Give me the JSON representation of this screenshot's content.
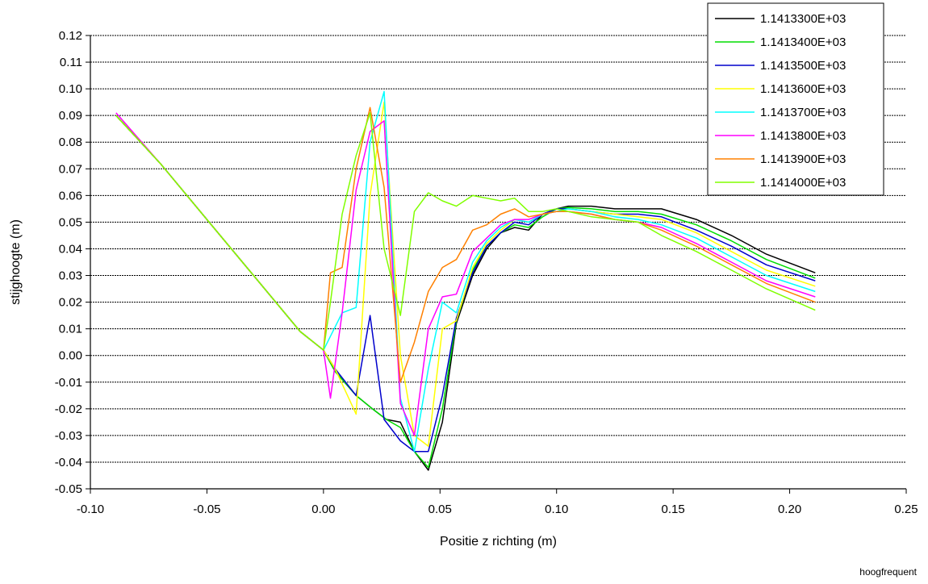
{
  "footer_note": "hoogfrequent",
  "chart_data": {
    "type": "line",
    "title": "",
    "xlabel": "Positie z richting (m)",
    "ylabel": "stijghoogte (m)",
    "xlim": [
      -0.1,
      0.25
    ],
    "ylim": [
      -0.05,
      0.12
    ],
    "x_ticks": [
      "-0.10",
      "-0.05",
      "0.00",
      "0.05",
      "0.10",
      "0.15",
      "0.20",
      "0.25"
    ],
    "y_ticks": [
      "-0.05",
      "-0.04",
      "-0.03",
      "-0.02",
      "-0.01",
      "0.00",
      "0.01",
      "0.02",
      "0.03",
      "0.04",
      "0.05",
      "0.06",
      "0.07",
      "0.08",
      "0.09",
      "0.10",
      "0.11",
      "0.12"
    ],
    "grid": "horizontal dashed",
    "legend_position": "top-right",
    "series": [
      {
        "name": "1.1413300E+03",
        "color": "#000000",
        "x": [
          -0.089,
          -0.07,
          -0.05,
          -0.03,
          -0.01,
          0.0,
          0.005,
          0.014,
          0.021,
          0.027,
          0.033,
          0.039,
          0.045,
          0.051,
          0.057,
          0.064,
          0.07,
          0.076,
          0.082,
          0.088,
          0.094,
          0.1,
          0.105,
          0.115,
          0.125,
          0.135,
          0.145,
          0.16,
          0.175,
          0.19,
          0.211
        ],
        "y": [
          0.09,
          0.072,
          0.051,
          0.03,
          0.009,
          0.002,
          -0.006,
          -0.015,
          -0.02,
          -0.024,
          -0.025,
          -0.036,
          -0.043,
          -0.025,
          0.012,
          0.03,
          0.04,
          0.046,
          0.048,
          0.047,
          0.053,
          0.055,
          0.056,
          0.056,
          0.055,
          0.055,
          0.055,
          0.051,
          0.045,
          0.038,
          0.031
        ]
      },
      {
        "name": "1.1413400E+03",
        "color": "#00dd00",
        "x": [
          -0.089,
          -0.07,
          -0.05,
          -0.03,
          -0.01,
          0.0,
          0.005,
          0.014,
          0.021,
          0.027,
          0.033,
          0.039,
          0.045,
          0.051,
          0.057,
          0.064,
          0.07,
          0.076,
          0.082,
          0.088,
          0.094,
          0.1,
          0.105,
          0.115,
          0.125,
          0.135,
          0.145,
          0.16,
          0.175,
          0.19,
          0.211
        ],
        "y": [
          0.09,
          0.072,
          0.051,
          0.03,
          0.009,
          0.002,
          -0.006,
          -0.015,
          -0.02,
          -0.024,
          -0.027,
          -0.036,
          -0.042,
          -0.02,
          0.013,
          0.032,
          0.041,
          0.046,
          0.049,
          0.048,
          0.052,
          0.055,
          0.0555,
          0.055,
          0.054,
          0.054,
          0.053,
          0.049,
          0.043,
          0.036,
          0.029
        ]
      },
      {
        "name": "1.1413500E+03",
        "color": "#0000cc",
        "x": [
          -0.089,
          -0.07,
          -0.05,
          -0.03,
          -0.01,
          0.0,
          0.005,
          0.014,
          0.02,
          0.026,
          0.033,
          0.039,
          0.045,
          0.051,
          0.057,
          0.064,
          0.07,
          0.076,
          0.082,
          0.088,
          0.094,
          0.1,
          0.105,
          0.115,
          0.125,
          0.135,
          0.145,
          0.16,
          0.175,
          0.19,
          0.211
        ],
        "y": [
          0.09,
          0.072,
          0.051,
          0.03,
          0.009,
          0.002,
          -0.005,
          -0.015,
          0.015,
          -0.024,
          -0.032,
          -0.036,
          -0.036,
          -0.015,
          0.014,
          0.031,
          0.041,
          0.046,
          0.05,
          0.049,
          0.053,
          0.055,
          0.055,
          0.054,
          0.053,
          0.053,
          0.052,
          0.047,
          0.041,
          0.034,
          0.028
        ]
      },
      {
        "name": "1.1413600E+03",
        "color": "#ffff00",
        "x": [
          -0.089,
          -0.07,
          -0.05,
          -0.03,
          -0.01,
          0.0,
          0.005,
          0.014,
          0.02,
          0.026,
          0.033,
          0.039,
          0.045,
          0.051,
          0.057,
          0.064,
          0.07,
          0.076,
          0.082,
          0.088,
          0.094,
          0.1,
          0.105,
          0.115,
          0.125,
          0.135,
          0.145,
          0.16,
          0.175,
          0.19,
          0.211
        ],
        "y": [
          0.09,
          0.072,
          0.051,
          0.03,
          0.009,
          0.002,
          -0.005,
          -0.022,
          0.06,
          0.095,
          0.0,
          -0.03,
          -0.034,
          0.01,
          0.013,
          0.033,
          0.042,
          0.047,
          0.051,
          0.05,
          0.053,
          0.054,
          0.055,
          0.054,
          0.053,
          0.052,
          0.051,
          0.046,
          0.039,
          0.032,
          0.026
        ]
      },
      {
        "name": "1.1413700E+03",
        "color": "#00ffff",
        "x": [
          -0.089,
          -0.07,
          -0.05,
          -0.03,
          -0.01,
          0.0,
          0.008,
          0.014,
          0.02,
          0.026,
          0.033,
          0.039,
          0.045,
          0.051,
          0.057,
          0.064,
          0.07,
          0.076,
          0.082,
          0.088,
          0.094,
          0.1,
          0.105,
          0.115,
          0.125,
          0.135,
          0.145,
          0.16,
          0.175,
          0.19,
          0.211
        ],
        "y": [
          0.09,
          0.072,
          0.051,
          0.03,
          0.009,
          0.002,
          0.016,
          0.018,
          0.08,
          0.099,
          -0.016,
          -0.036,
          -0.005,
          0.02,
          0.016,
          0.035,
          0.043,
          0.048,
          0.051,
          0.05,
          0.053,
          0.054,
          0.055,
          0.054,
          0.052,
          0.051,
          0.049,
          0.044,
          0.037,
          0.03,
          0.024
        ]
      },
      {
        "name": "1.1413800E+03",
        "color": "#ff00ff",
        "x": [
          -0.089,
          -0.07,
          -0.05,
          -0.03,
          -0.01,
          0.0,
          0.003,
          0.008,
          0.014,
          0.02,
          0.026,
          0.033,
          0.039,
          0.045,
          0.051,
          0.057,
          0.064,
          0.07,
          0.076,
          0.082,
          0.088,
          0.094,
          0.1,
          0.105,
          0.115,
          0.125,
          0.135,
          0.145,
          0.16,
          0.175,
          0.19,
          0.211
        ],
        "y": [
          0.091,
          0.072,
          0.051,
          0.03,
          0.009,
          0.002,
          -0.016,
          0.016,
          0.062,
          0.084,
          0.088,
          -0.018,
          -0.03,
          0.01,
          0.022,
          0.023,
          0.039,
          0.044,
          0.049,
          0.051,
          0.051,
          0.053,
          0.054,
          0.054,
          0.053,
          0.051,
          0.05,
          0.048,
          0.042,
          0.035,
          0.028,
          0.022
        ]
      },
      {
        "name": "1.1413900E+03",
        "color": "#ff8000",
        "x": [
          -0.089,
          -0.07,
          -0.05,
          -0.03,
          -0.01,
          0.0,
          0.003,
          0.008,
          0.014,
          0.02,
          0.026,
          0.033,
          0.039,
          0.045,
          0.051,
          0.057,
          0.064,
          0.07,
          0.076,
          0.082,
          0.088,
          0.094,
          0.1,
          0.105,
          0.115,
          0.125,
          0.135,
          0.145,
          0.16,
          0.175,
          0.19,
          0.211
        ],
        "y": [
          0.09,
          0.072,
          0.051,
          0.03,
          0.009,
          0.002,
          0.031,
          0.033,
          0.07,
          0.093,
          0.063,
          -0.01,
          0.005,
          0.024,
          0.033,
          0.036,
          0.047,
          0.049,
          0.053,
          0.055,
          0.052,
          0.053,
          0.054,
          0.054,
          0.053,
          0.051,
          0.05,
          0.047,
          0.041,
          0.034,
          0.027,
          0.02
        ]
      },
      {
        "name": "1.1414000E+03",
        "color": "#80ff00",
        "x": [
          -0.089,
          -0.07,
          -0.05,
          -0.03,
          -0.01,
          0.0,
          0.003,
          0.008,
          0.014,
          0.02,
          0.026,
          0.033,
          0.039,
          0.045,
          0.051,
          0.057,
          0.064,
          0.07,
          0.076,
          0.082,
          0.088,
          0.094,
          0.1,
          0.105,
          0.115,
          0.125,
          0.135,
          0.145,
          0.16,
          0.175,
          0.19,
          0.211
        ],
        "y": [
          0.09,
          0.072,
          0.051,
          0.03,
          0.009,
          0.002,
          0.02,
          0.053,
          0.075,
          0.091,
          0.04,
          0.015,
          0.054,
          0.061,
          0.058,
          0.056,
          0.06,
          0.059,
          0.058,
          0.059,
          0.054,
          0.054,
          0.055,
          0.054,
          0.052,
          0.051,
          0.05,
          0.045,
          0.039,
          0.032,
          0.025,
          0.017
        ]
      }
    ]
  }
}
